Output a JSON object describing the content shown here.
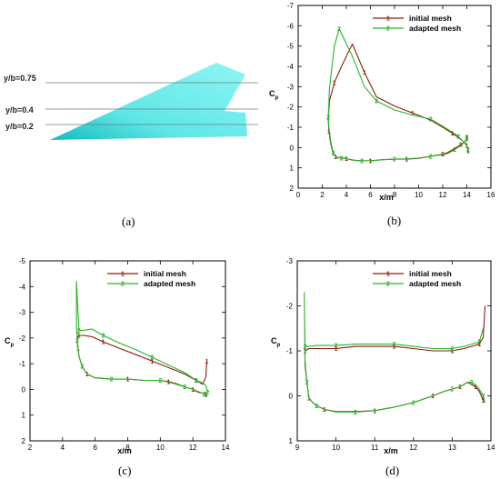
{
  "colors": {
    "initial": "#8b1a0e",
    "adapted": "#27b327",
    "wing": "#7ff0f0",
    "wing_dark": "#1fc6c6",
    "cut_line": "#6b7e7e"
  },
  "panel_a": {
    "caption": "(a)",
    "sections": [
      {
        "label": "y/b=0.75",
        "value": 0.75
      },
      {
        "label": "y/b=0.4",
        "value": 0.4
      },
      {
        "label": "y/b=0.2",
        "value": 0.2
      }
    ]
  },
  "chart_data": [
    {
      "type": "line",
      "caption": "(b)",
      "xlabel": "x/m",
      "ylabel": "Cp",
      "xlim": [
        0,
        16
      ],
      "ylim": [
        2,
        -7
      ],
      "x_ticks": [
        0,
        2,
        4,
        6,
        8,
        10,
        12,
        14,
        16
      ],
      "y_ticks": [
        -7,
        -6,
        -5,
        -4,
        -3,
        -2,
        -1,
        0,
        1,
        2
      ],
      "legend": {
        "position": "top-right"
      },
      "series": [
        {
          "name": "initial mesh",
          "marker": "1",
          "x": [
            14.0,
            13.9,
            13.8,
            13.5,
            13.0,
            12.4,
            12.0,
            11.0,
            10.0,
            9.0,
            8.0,
            7.0,
            6.0,
            5.3,
            4.6,
            4.0,
            3.6,
            3.3,
            3.1,
            2.9,
            2.7,
            2.55,
            2.5,
            2.6,
            3.0,
            3.6,
            4.5,
            5.5,
            6.5,
            8.0,
            9.5,
            11.0,
            12.0,
            12.8,
            13.3,
            13.7,
            14.0,
            14.1,
            14.1
          ],
          "y": [
            -0.5,
            -0.35,
            -0.25,
            -0.15,
            0.05,
            0.25,
            0.33,
            0.43,
            0.53,
            0.57,
            0.57,
            0.6,
            0.65,
            0.65,
            0.62,
            0.55,
            0.52,
            0.5,
            0.45,
            0.3,
            -0.2,
            -0.8,
            -1.4,
            -2.3,
            -3.2,
            -4.0,
            -5.1,
            -3.7,
            -2.5,
            -2.05,
            -1.7,
            -1.35,
            -1.0,
            -0.7,
            -0.5,
            -0.3,
            -0.1,
            0.05,
            0.3
          ]
        },
        {
          "name": "adapted mesh",
          "marker": "2",
          "x": [
            14.1,
            14.0,
            13.9,
            13.5,
            13.0,
            12.4,
            12.0,
            11.0,
            10.0,
            9.0,
            8.0,
            7.0,
            6.0,
            5.3,
            4.6,
            4.0,
            3.6,
            3.3,
            3.1,
            2.9,
            2.7,
            2.55,
            2.5,
            2.6,
            3.0,
            3.4,
            4.5,
            5.5,
            6.5,
            8.0,
            9.5,
            11.0,
            12.0,
            12.8,
            13.3,
            13.7,
            14.0,
            14.1,
            14.2
          ],
          "y": [
            -0.6,
            -0.45,
            -0.3,
            -0.1,
            0.1,
            0.3,
            0.35,
            0.43,
            0.52,
            0.56,
            0.57,
            0.6,
            0.65,
            0.65,
            0.63,
            0.55,
            0.52,
            0.48,
            0.45,
            0.25,
            -0.3,
            -1.0,
            -1.5,
            -2.9,
            -5.0,
            -5.85,
            -4.5,
            -3.0,
            -2.3,
            -1.85,
            -1.6,
            -1.4,
            -1.05,
            -0.75,
            -0.55,
            -0.3,
            -0.1,
            0.1,
            0.25
          ]
        }
      ]
    },
    {
      "type": "line",
      "caption": "(c)",
      "xlabel": "x/m",
      "ylabel": "Cp",
      "xlim": [
        2,
        14
      ],
      "ylim": [
        2,
        -5
      ],
      "x_ticks": [
        2,
        4,
        6,
        8,
        10,
        12,
        14
      ],
      "y_ticks": [
        -5,
        -4,
        -3,
        -2,
        -1,
        0,
        1,
        2
      ],
      "legend": {
        "position": "top-right"
      },
      "series": [
        {
          "name": "initial mesh",
          "marker": "1",
          "x": [
            12.8,
            12.6,
            12.3,
            12.0,
            11.5,
            11.0,
            10.5,
            10.0,
            9.0,
            8.0,
            7.0,
            6.0,
            5.5,
            5.2,
            5.0,
            4.95,
            4.9,
            4.9,
            5.0,
            5.3,
            5.8,
            6.5,
            7.5,
            8.5,
            9.5,
            10.5,
            11.5,
            12.2,
            12.6,
            12.8,
            12.85
          ],
          "y": [
            0.2,
            0.15,
            0.1,
            0.0,
            -0.1,
            -0.22,
            -0.3,
            -0.35,
            -0.35,
            -0.4,
            -0.4,
            -0.45,
            -0.6,
            -0.9,
            -1.3,
            -1.6,
            -1.8,
            -2.0,
            -2.1,
            -2.1,
            -2.05,
            -1.85,
            -1.6,
            -1.35,
            -1.1,
            -0.85,
            -0.6,
            -0.35,
            -0.2,
            -0.5,
            -1.1
          ]
        },
        {
          "name": "adapted mesh",
          "marker": "2",
          "x": [
            12.9,
            12.7,
            12.4,
            12.0,
            11.5,
            11.0,
            10.5,
            10.0,
            9.0,
            8.0,
            7.0,
            6.0,
            5.5,
            5.2,
            5.0,
            4.95,
            4.9,
            4.85,
            4.85,
            5.0,
            5.3,
            5.8,
            6.5,
            7.5,
            8.5,
            9.5,
            10.5,
            11.5,
            12.2,
            12.6,
            12.8,
            12.9
          ],
          "y": [
            0.25,
            0.18,
            0.1,
            0.0,
            -0.1,
            -0.2,
            -0.28,
            -0.35,
            -0.35,
            -0.4,
            -0.4,
            -0.45,
            -0.6,
            -0.9,
            -1.3,
            -1.6,
            -1.9,
            -2.4,
            -4.2,
            -2.3,
            -2.3,
            -2.35,
            -2.1,
            -1.8,
            -1.55,
            -1.25,
            -0.95,
            -0.65,
            -0.35,
            -0.25,
            -0.15,
            0.1
          ]
        }
      ]
    },
    {
      "type": "line",
      "caption": "(d)",
      "xlabel": "x/m",
      "ylabel": "Cp",
      "xlim": [
        9,
        14
      ],
      "ylim": [
        1,
        -3
      ],
      "x_ticks": [
        9,
        10,
        11,
        12,
        13,
        14
      ],
      "y_ticks": [
        -3,
        -2,
        -1,
        0,
        1
      ],
      "legend": {
        "position": "top-right"
      },
      "series": [
        {
          "name": "initial mesh",
          "marker": "1",
          "x": [
            13.8,
            13.75,
            13.7,
            13.6,
            13.5,
            13.4,
            13.2,
            13.0,
            12.8,
            12.5,
            12.0,
            11.5,
            11.0,
            10.5,
            10.0,
            9.7,
            9.5,
            9.4,
            9.3,
            9.25,
            9.2,
            9.2,
            9.3,
            9.5,
            10.0,
            10.5,
            11.0,
            11.5,
            12.0,
            12.5,
            13.0,
            13.3,
            13.5,
            13.7,
            13.8,
            13.85
          ],
          "y": [
            0.1,
            0.0,
            -0.1,
            -0.2,
            -0.25,
            -0.3,
            -0.2,
            -0.15,
            -0.1,
            0.0,
            0.15,
            0.25,
            0.33,
            0.35,
            0.35,
            0.3,
            0.22,
            0.15,
            0.05,
            -0.3,
            -0.7,
            -1.0,
            -1.05,
            -1.05,
            -1.05,
            -1.1,
            -1.1,
            -1.1,
            -1.05,
            -1.0,
            -1.0,
            -1.05,
            -1.1,
            -1.15,
            -1.3,
            -2.0
          ]
        },
        {
          "name": "adapted mesh",
          "marker": "2",
          "x": [
            13.85,
            13.8,
            13.7,
            13.6,
            13.5,
            13.4,
            13.2,
            13.0,
            12.8,
            12.5,
            12.0,
            11.5,
            11.0,
            10.5,
            10.0,
            9.7,
            9.5,
            9.4,
            9.3,
            9.25,
            9.2,
            9.18,
            9.2,
            9.3,
            9.5,
            10.0,
            10.5,
            11.0,
            11.5,
            12.0,
            12.5,
            13.0,
            13.3,
            13.5,
            13.7,
            13.8
          ],
          "y": [
            0.15,
            0.0,
            -0.15,
            -0.25,
            -0.3,
            -0.3,
            -0.2,
            -0.15,
            -0.1,
            0.0,
            0.15,
            0.25,
            0.33,
            0.36,
            0.36,
            0.3,
            0.22,
            0.15,
            0.05,
            -0.3,
            -0.8,
            -2.3,
            -1.1,
            -1.1,
            -1.12,
            -1.12,
            -1.15,
            -1.15,
            -1.15,
            -1.1,
            -1.05,
            -1.05,
            -1.1,
            -1.15,
            -1.2,
            -1.5
          ]
        }
      ]
    }
  ]
}
